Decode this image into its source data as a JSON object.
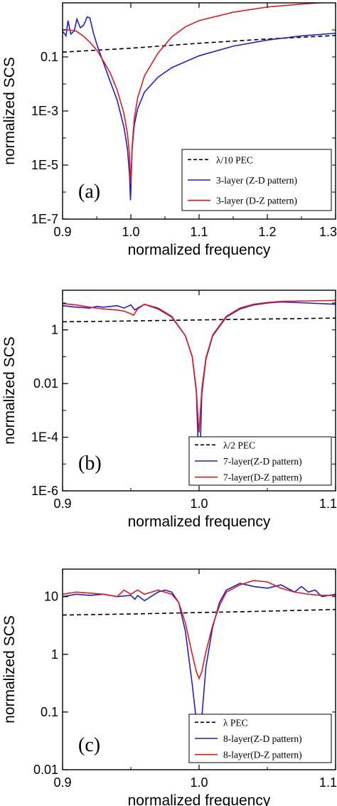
{
  "chart_data": [
    {
      "type": "line",
      "panel_label": "(a)",
      "xlabel": "normalized frequency",
      "ylabel": "normalized SCS",
      "xscale": "linear",
      "yscale": "log",
      "xlim": [
        0.9,
        1.3
      ],
      "ylim": [
        1e-07,
        10
      ],
      "xticks": [
        0.9,
        1.0,
        1.1,
        1.2,
        1.3
      ],
      "xtick_labels": [
        "0.9",
        "1.0",
        "1.1",
        "1.2",
        "1.3"
      ],
      "yticks": [
        1e-07,
        1e-05,
        0.001,
        0.1
      ],
      "ytick_labels": [
        "1E-7",
        "1E-5",
        "1E-3",
        "0.1"
      ],
      "legend_position": "bottom-right",
      "series": [
        {
          "name": "λ/10 PEC",
          "color": "#000000",
          "dash": "dashed",
          "x": [
            0.9,
            1.0,
            1.1,
            1.2,
            1.3
          ],
          "y": [
            0.15,
            0.21,
            0.32,
            0.46,
            0.62
          ]
        },
        {
          "name": "3-layer (Z-D pattern)",
          "color": "#1f1fd0",
          "dash": "solid",
          "x": [
            0.9,
            0.905,
            0.908,
            0.912,
            0.917,
            0.921,
            0.926,
            0.931,
            0.936,
            0.94,
            0.945,
            0.95,
            0.96,
            0.97,
            0.98,
            0.99,
            0.995,
            0.998,
            0.9995,
            1.0,
            1.0005,
            1.002,
            1.005,
            1.01,
            1.02,
            1.04,
            1.06,
            1.1,
            1.15,
            1.2,
            1.25,
            1.3
          ],
          "y": [
            0.9,
            0.6,
            2.2,
            0.7,
            0.9,
            2.5,
            1.2,
            1.5,
            3.0,
            2.8,
            0.8,
            0.3,
            0.06,
            0.012,
            0.0025,
            0.00025,
            4e-05,
            5e-06,
            5e-07,
            1e-06,
            3e-06,
            4e-05,
            0.0003,
            0.0012,
            0.005,
            0.018,
            0.04,
            0.11,
            0.25,
            0.42,
            0.6,
            0.75
          ]
        },
        {
          "name": "3-layer (D-Z pattern)",
          "color": "#e31a1c",
          "dash": "solid",
          "x": [
            0.9,
            0.91,
            0.92,
            0.93,
            0.94,
            0.95,
            0.96,
            0.97,
            0.98,
            0.99,
            0.995,
            0.998,
            0.9995,
            1.0,
            1.0005,
            1.002,
            1.005,
            1.01,
            1.02,
            1.04,
            1.06,
            1.08,
            1.1,
            1.15,
            1.2,
            1.25,
            1.3
          ],
          "y": [
            1.0,
            1.0,
            0.9,
            0.6,
            0.35,
            0.18,
            0.07,
            0.025,
            0.006,
            0.0008,
            0.00015,
            2.5e-05,
            3e-06,
            2e-06,
            5e-06,
            5e-05,
            0.0005,
            0.003,
            0.02,
            0.14,
            0.55,
            1.3,
            2.2,
            4.5,
            7.0,
            9.0,
            11.0
          ]
        }
      ]
    },
    {
      "type": "line",
      "panel_label": "(b)",
      "xlabel": "normalized frequency",
      "ylabel": "normalized SCS",
      "xscale": "linear",
      "yscale": "log",
      "xlim": [
        0.9,
        1.1
      ],
      "ylim": [
        1e-06,
        30
      ],
      "xticks": [
        0.9,
        1.0,
        1.1
      ],
      "xtick_labels": [
        "0.9",
        "1.0",
        "1.1"
      ],
      "yticks": [
        1e-06,
        0.0001,
        0.01,
        1
      ],
      "ytick_labels": [
        "1E-6",
        "1E-4",
        "0.01",
        "1"
      ],
      "legend_position": "bottom-right",
      "series": [
        {
          "name": "λ/2 PEC",
          "color": "#000000",
          "dash": "dashed",
          "x": [
            0.9,
            0.95,
            1.0,
            1.05,
            1.1
          ],
          "y": [
            2.0,
            2.15,
            2.35,
            2.55,
            2.75
          ]
        },
        {
          "name": "7-layer(Z-D pattern)",
          "color": "#1f1fd0",
          "dash": "solid",
          "x": [
            0.9,
            0.91,
            0.92,
            0.925,
            0.93,
            0.94,
            0.945,
            0.95,
            0.953,
            0.955,
            0.96,
            0.97,
            0.98,
            0.99,
            0.995,
            0.998,
            0.9995,
            1.0,
            1.0005,
            1.002,
            1.005,
            1.01,
            1.02,
            1.03,
            1.04,
            1.05,
            1.06,
            1.08,
            1.1
          ],
          "y": [
            8.0,
            7.0,
            6.5,
            7.5,
            7.0,
            8.0,
            6.5,
            8.5,
            5.5,
            6.5,
            9.0,
            6.0,
            3.0,
            0.6,
            0.1,
            0.005,
            3e-05,
            2e-06,
            1e-05,
            0.004,
            0.08,
            0.6,
            3.0,
            6.0,
            8.5,
            10.0,
            11.0,
            10.0,
            9.0
          ]
        },
        {
          "name": "7-layer(D-Z pattern)",
          "color": "#e31a1c",
          "dash": "solid",
          "x": [
            0.9,
            0.91,
            0.92,
            0.93,
            0.94,
            0.945,
            0.95,
            0.952,
            0.955,
            0.96,
            0.97,
            0.98,
            0.99,
            0.995,
            0.998,
            0.9995,
            1.0,
            1.0005,
            1.002,
            1.005,
            1.01,
            1.02,
            1.03,
            1.04,
            1.05,
            1.06,
            1.08,
            1.1
          ],
          "y": [
            9.5,
            8.5,
            7.0,
            6.0,
            5.5,
            5.0,
            4.0,
            3.5,
            6.0,
            9.0,
            6.5,
            3.2,
            0.6,
            0.1,
            0.006,
            0.0003,
            0.00015,
            0.0004,
            0.006,
            0.09,
            0.65,
            3.2,
            6.5,
            9.0,
            10.5,
            11.5,
            12.0,
            12.5
          ]
        }
      ]
    },
    {
      "type": "line",
      "panel_label": "(c)",
      "xlabel": "normalized frequency",
      "ylabel": "normalized SCS",
      "xscale": "linear",
      "yscale": "log",
      "xlim": [
        0.9,
        1.1
      ],
      "ylim": [
        0.01,
        30
      ],
      "xticks": [
        0.9,
        1.0,
        1.1
      ],
      "xtick_labels": [
        "0.9",
        "1.0",
        "1.1"
      ],
      "yticks": [
        0.01,
        0.1,
        1,
        10
      ],
      "ytick_labels": [
        "0.01",
        "0.1",
        "1",
        "10"
      ],
      "legend_position": "bottom-right",
      "series": [
        {
          "name": "λ PEC",
          "color": "#000000",
          "dash": "dashed",
          "x": [
            0.9,
            0.95,
            1.0,
            1.05,
            1.1
          ],
          "y": [
            4.8,
            5.0,
            5.3,
            5.6,
            6.0
          ]
        },
        {
          "name": "8-layer(Z-D pattern)",
          "color": "#1f1fd0",
          "dash": "solid",
          "x": [
            0.9,
            0.91,
            0.92,
            0.93,
            0.94,
            0.95,
            0.953,
            0.955,
            0.96,
            0.97,
            0.975,
            0.98,
            0.985,
            0.99,
            0.995,
            0.998,
            1.0,
            1.002,
            1.005,
            1.01,
            1.015,
            1.02,
            1.03,
            1.04,
            1.05,
            1.06,
            1.07,
            1.075,
            1.08,
            1.085,
            1.09,
            1.1
          ],
          "y": [
            10.0,
            11.0,
            10.5,
            11.0,
            10.0,
            10.5,
            9.0,
            10.5,
            8.5,
            12.0,
            13.0,
            12.0,
            8.0,
            2.5,
            0.3,
            0.07,
            0.035,
            0.08,
            0.6,
            3.0,
            8.0,
            13.0,
            17.0,
            15.0,
            14.0,
            16.0,
            12.0,
            15.0,
            12.0,
            13.0,
            10.0,
            11.0
          ]
        },
        {
          "name": "8-layer(D-Z pattern)",
          "color": "#e31a1c",
          "dash": "solid",
          "x": [
            0.9,
            0.91,
            0.92,
            0.93,
            0.94,
            0.945,
            0.95,
            0.955,
            0.96,
            0.97,
            0.98,
            0.985,
            0.99,
            0.995,
            0.998,
            1.0,
            1.002,
            1.005,
            1.01,
            1.015,
            1.02,
            1.03,
            1.04,
            1.05,
            1.06,
            1.07,
            1.08,
            1.09,
            1.1
          ],
          "y": [
            11.0,
            12.0,
            11.5,
            11.0,
            10.0,
            13.0,
            11.0,
            13.0,
            11.0,
            13.0,
            11.0,
            8.0,
            3.5,
            1.0,
            0.5,
            0.38,
            0.5,
            1.1,
            3.2,
            7.0,
            12.0,
            16.0,
            19.0,
            18.0,
            14.0,
            12.0,
            11.0,
            10.5,
            10.5
          ]
        }
      ]
    }
  ]
}
